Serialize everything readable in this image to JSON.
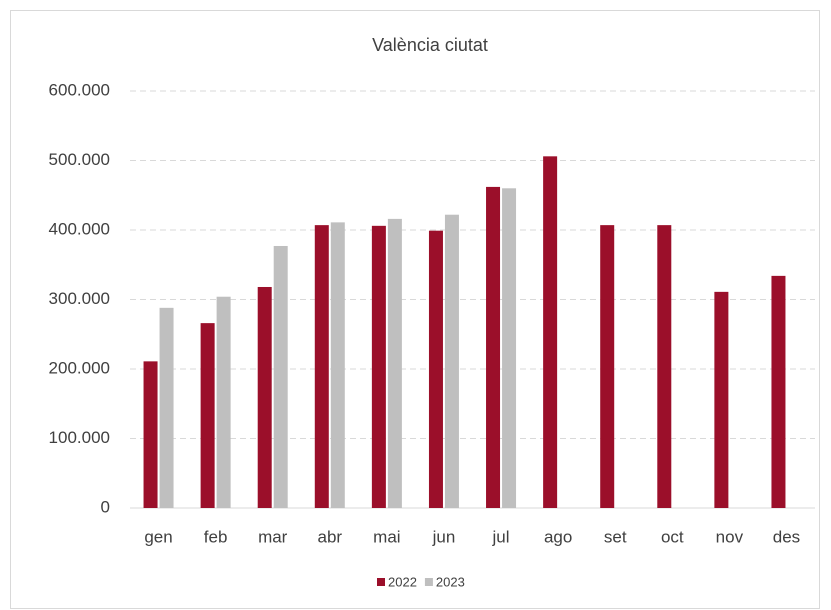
{
  "chart_data": {
    "type": "bar",
    "title": "València ciutat",
    "categories": [
      "gen",
      "feb",
      "mar",
      "abr",
      "mai",
      "jun",
      "jul",
      "ago",
      "set",
      "oct",
      "nov",
      "des"
    ],
    "series": [
      {
        "name": "2022",
        "color": "#9b0f2a",
        "values": [
          211000,
          266000,
          318000,
          407000,
          406000,
          399000,
          462000,
          506000,
          407000,
          407000,
          311000,
          334000
        ]
      },
      {
        "name": "2023",
        "color": "#bfbfbf",
        "values": [
          288000,
          304000,
          377000,
          411000,
          416000,
          422000,
          460000,
          null,
          null,
          null,
          null,
          null
        ]
      }
    ],
    "ylim": [
      0,
      600000
    ],
    "yticks": [
      0,
      {
        "value": 100000,
        "label": "100.000"
      },
      {
        "value": 200000,
        "label": "200.000"
      },
      {
        "value": 300000,
        "label": "300.000"
      },
      {
        "value": 400000,
        "label": "400.000"
      },
      {
        "value": 500000,
        "label": "500.000"
      },
      {
        "value": 600000,
        "label": "600.000"
      }
    ],
    "grid": true,
    "legend": "bottom"
  }
}
